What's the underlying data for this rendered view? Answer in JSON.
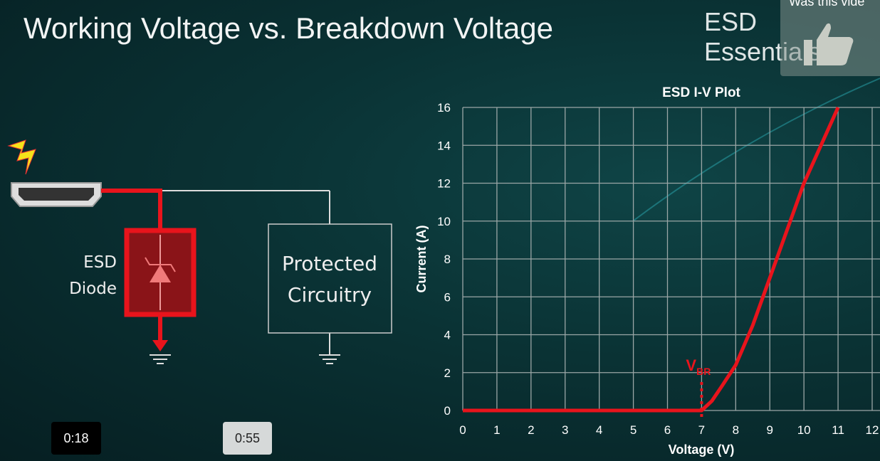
{
  "slide": {
    "title": "Working Voltage vs. Breakdown Voltage",
    "brand": "ESD Essentials"
  },
  "diagram": {
    "diode_label_1": "ESD",
    "diode_label_2": "Diode",
    "protected_1": "Protected",
    "protected_2": "Circuitry",
    "icons": [
      "lightning-icon",
      "hdmi-connector-icon",
      "tvs-diode-icon",
      "ground-icon"
    ]
  },
  "overlay": {
    "feedback_question": "Was this vide",
    "feedback_icon": "thumbs-up-icon",
    "time_current": "0:18",
    "time_total": "0:55"
  },
  "colors": {
    "curve": "#e8141c",
    "grid": "#9aa6a6",
    "background": "#0a3234"
  },
  "chart_data": {
    "type": "line",
    "title": "ESD I-V Plot",
    "xlabel": "Voltage (V)",
    "ylabel": "Current (A)",
    "xlim": [
      0,
      12
    ],
    "ylim": [
      0,
      16
    ],
    "xticks": [
      "0",
      "1",
      "2",
      "3",
      "4",
      "5",
      "6",
      "7",
      "8",
      "9",
      "10",
      "11",
      "12"
    ],
    "yticks": [
      "0",
      "2",
      "4",
      "6",
      "8",
      "10",
      "12",
      "14",
      "16"
    ],
    "grid": true,
    "series": [
      {
        "x": [
          0,
          7,
          7.3,
          7.6,
          8,
          8.5,
          9,
          9.5,
          10,
          10.5,
          11
        ],
        "y": [
          0,
          0,
          0.5,
          1.3,
          2.4,
          4.5,
          7,
          9.5,
          12,
          14,
          16
        ]
      }
    ],
    "annotation": {
      "label": "V",
      "subscript": "BR",
      "x": 7
    }
  }
}
